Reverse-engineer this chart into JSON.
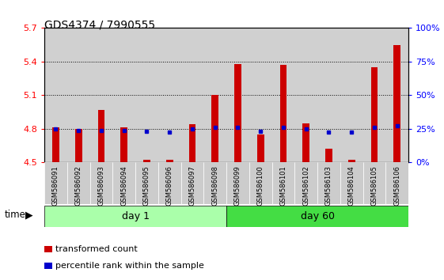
{
  "title": "GDS4374 / 7990555",
  "samples": [
    "GSM586091",
    "GSM586092",
    "GSM586093",
    "GSM586094",
    "GSM586095",
    "GSM586096",
    "GSM586097",
    "GSM586098",
    "GSM586099",
    "GSM586100",
    "GSM586101",
    "GSM586102",
    "GSM586103",
    "GSM586104",
    "GSM586105",
    "GSM586106"
  ],
  "red_values": [
    4.81,
    4.8,
    4.97,
    4.81,
    4.52,
    4.52,
    4.84,
    5.1,
    5.38,
    4.75,
    5.37,
    4.85,
    4.62,
    4.52,
    5.35,
    5.55
  ],
  "blue_values": [
    4.8,
    4.787,
    4.787,
    4.787,
    4.778,
    4.773,
    4.8,
    4.81,
    4.81,
    4.778,
    4.81,
    4.8,
    4.773,
    4.773,
    4.81,
    4.828
  ],
  "day1_label": "day 1",
  "day60_label": "day 60",
  "ymin": 4.5,
  "ymax": 5.7,
  "yticks": [
    4.5,
    4.8,
    5.1,
    5.4,
    5.7
  ],
  "right_yticks_pct": [
    0,
    25,
    50,
    75,
    100
  ],
  "bar_color": "#cc0000",
  "blue_color": "#0000cc",
  "bar_width": 0.6,
  "day1_color": "#aaffaa",
  "day60_color": "#44dd44",
  "time_label": "time",
  "legend_red": "transformed count",
  "legend_blue": "percentile rank within the sample",
  "title_fontsize": 10,
  "tick_fontsize": 8,
  "sample_fontsize": 6,
  "legend_fontsize": 8
}
